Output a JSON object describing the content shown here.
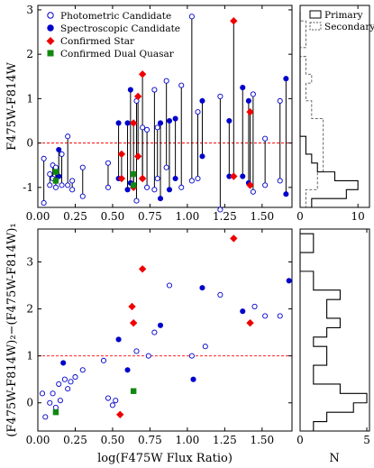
{
  "colors": {
    "photometric": "#0000cc",
    "spectroscopic": "#0000cc",
    "star": "#ee0000",
    "dual": "#118811",
    "reference": "#ff0000"
  },
  "chart_data": [
    {
      "id": "top-scatter",
      "type": "scatter",
      "xlabel": "",
      "ylabel": "F475W-F814W",
      "xlim": [
        0.0,
        1.7
      ],
      "ylim": [
        -1.45,
        3.1
      ],
      "xticks": [
        "0.00",
        "0.25",
        "0.50",
        "0.75",
        "1.00",
        "1.25",
        "1.50"
      ],
      "yticks": [
        "-1",
        "0",
        "1",
        "2",
        "3"
      ],
      "reference_y": 0,
      "legend": {
        "position": "top-left",
        "entries": [
          {
            "label": "Photometric Candidate",
            "marker": "open-circle"
          },
          {
            "label": "Spectroscopic Candidate",
            "marker": "filled-circle"
          },
          {
            "label": "Confirmed Star",
            "marker": "diamond"
          },
          {
            "label": "Confirmed Dual Quasar",
            "marker": "square"
          }
        ]
      },
      "pairs": [
        {
          "x": 0.04,
          "y1": -0.35,
          "y2": -1.35,
          "kind": "photometric"
        },
        {
          "x": 0.08,
          "y1": -0.7,
          "y2": -0.95,
          "kind": "photometric"
        },
        {
          "x": 0.1,
          "y1": -0.5,
          "y2": -0.8,
          "kind": "photometric"
        },
        {
          "x": 0.12,
          "y1": -0.55,
          "y2": -1.0,
          "kind": "photometric"
        },
        {
          "x": 0.14,
          "y1": -0.15,
          "y2": -0.75,
          "kind": "spectroscopic"
        },
        {
          "x": 0.16,
          "y1": -0.25,
          "y2": -0.95,
          "kind": "photometric"
        },
        {
          "x": 0.2,
          "y1": 0.15,
          "y2": -0.95,
          "kind": "photometric"
        },
        {
          "x": 0.23,
          "y1": -0.85,
          "y2": -1.05,
          "kind": "photometric"
        },
        {
          "x": 0.3,
          "y1": -0.55,
          "y2": -1.2,
          "kind": "photometric"
        },
        {
          "x": 0.47,
          "y1": -0.45,
          "y2": -1.0,
          "kind": "photometric"
        },
        {
          "x": 0.54,
          "y1": 0.45,
          "y2": -0.8,
          "kind": "spectroscopic"
        },
        {
          "x": 0.6,
          "y1": 0.45,
          "y2": -1.05,
          "kind": "spectroscopic"
        },
        {
          "x": 0.62,
          "y1": 1.2,
          "y2": -0.9,
          "kind": "spectroscopic"
        },
        {
          "x": 0.66,
          "y1": 0.95,
          "y2": -1.3,
          "kind": "photometric"
        },
        {
          "x": 0.7,
          "y1": 0.35,
          "y2": -0.8,
          "kind": "photometric"
        },
        {
          "x": 0.73,
          "y1": 0.3,
          "y2": -1.0,
          "kind": "photometric"
        },
        {
          "x": 0.78,
          "y1": 1.2,
          "y2": -1.05,
          "kind": "photometric"
        },
        {
          "x": 0.8,
          "y1": 0.35,
          "y2": -0.8,
          "kind": "photometric"
        },
        {
          "x": 0.82,
          "y1": 0.45,
          "y2": -1.25,
          "kind": "spectroscopic"
        },
        {
          "x": 0.86,
          "y1": 1.4,
          "y2": -0.55,
          "kind": "photometric"
        },
        {
          "x": 0.88,
          "y1": 0.5,
          "y2": -1.05,
          "kind": "spectroscopic"
        },
        {
          "x": 0.92,
          "y1": 0.55,
          "y2": -0.8,
          "kind": "spectroscopic"
        },
        {
          "x": 0.96,
          "y1": 1.3,
          "y2": -1.0,
          "kind": "photometric"
        },
        {
          "x": 1.03,
          "y1": 2.85,
          "y2": -0.85,
          "kind": "photometric"
        },
        {
          "x": 1.07,
          "y1": 0.7,
          "y2": -0.8,
          "kind": "photometric"
        },
        {
          "x": 1.1,
          "y1": 0.95,
          "y2": -0.3,
          "kind": "spectroscopic"
        },
        {
          "x": 1.22,
          "y1": 1.05,
          "y2": -1.5,
          "kind": "photometric"
        },
        {
          "x": 1.28,
          "y1": 0.5,
          "y2": -0.75,
          "kind": "spectroscopic"
        },
        {
          "x": 1.37,
          "y1": 1.25,
          "y2": -0.75,
          "kind": "spectroscopic"
        },
        {
          "x": 1.41,
          "y1": 0.95,
          "y2": -0.9,
          "kind": "spectroscopic"
        },
        {
          "x": 1.44,
          "y1": 1.1,
          "y2": -1.1,
          "kind": "photometric"
        },
        {
          "x": 1.52,
          "y1": 0.1,
          "y2": -0.95,
          "kind": "photometric"
        },
        {
          "x": 1.62,
          "y1": 0.95,
          "y2": -0.85,
          "kind": "photometric"
        },
        {
          "x": 1.66,
          "y1": 1.45,
          "y2": -1.15,
          "kind": "spectroscopic"
        },
        {
          "x": 0.56,
          "y1": -0.8,
          "y2": -0.25,
          "kind": "star"
        },
        {
          "x": 0.64,
          "y1": 0.45,
          "y2": -1.0,
          "kind": "star"
        },
        {
          "x": 0.67,
          "y1": 1.05,
          "y2": -0.3,
          "kind": "star"
        },
        {
          "x": 0.7,
          "y1": 1.55,
          "y2": -0.8,
          "kind": "star"
        },
        {
          "x": 1.31,
          "y1": 2.75,
          "y2": -0.75,
          "kind": "star"
        },
        {
          "x": 1.42,
          "y1": 0.7,
          "y2": -0.95,
          "kind": "star"
        },
        {
          "x": 0.12,
          "y1": -0.65,
          "y2": -0.85,
          "kind": "dual"
        },
        {
          "x": 0.64,
          "y1": -0.7,
          "y2": -0.95,
          "kind": "dual"
        }
      ]
    },
    {
      "id": "bottom-scatter",
      "type": "scatter",
      "xlabel": "log(F475W Flux Ratio)",
      "ylabel": "(F475W-F814W)₂−(F475W-F814W)₁",
      "xlim": [
        0.0,
        1.7
      ],
      "ylim": [
        -0.6,
        3.7
      ],
      "xticks": [
        "0.00",
        "0.25",
        "0.50",
        "0.75",
        "1.00",
        "1.25",
        "1.50"
      ],
      "yticks": [
        "0",
        "1",
        "2",
        "3"
      ],
      "reference_y": 1,
      "points": [
        {
          "x": 0.03,
          "y": 0.2,
          "kind": "photometric"
        },
        {
          "x": 0.05,
          "y": -0.3,
          "kind": "photometric"
        },
        {
          "x": 0.08,
          "y": 0.0,
          "kind": "photometric"
        },
        {
          "x": 0.1,
          "y": 0.2,
          "kind": "photometric"
        },
        {
          "x": 0.12,
          "y": -0.1,
          "kind": "photometric"
        },
        {
          "x": 0.14,
          "y": 0.4,
          "kind": "photometric"
        },
        {
          "x": 0.15,
          "y": 0.05,
          "kind": "photometric"
        },
        {
          "x": 0.17,
          "y": 0.85,
          "kind": "spectroscopic"
        },
        {
          "x": 0.18,
          "y": 0.5,
          "kind": "photometric"
        },
        {
          "x": 0.2,
          "y": 0.3,
          "kind": "photometric"
        },
        {
          "x": 0.22,
          "y": 0.45,
          "kind": "photometric"
        },
        {
          "x": 0.25,
          "y": 0.55,
          "kind": "photometric"
        },
        {
          "x": 0.3,
          "y": 0.7,
          "kind": "photometric"
        },
        {
          "x": 0.44,
          "y": 0.9,
          "kind": "photometric"
        },
        {
          "x": 0.47,
          "y": 0.1,
          "kind": "photometric"
        },
        {
          "x": 0.5,
          "y": -0.05,
          "kind": "photometric"
        },
        {
          "x": 0.52,
          "y": 0.05,
          "kind": "photometric"
        },
        {
          "x": 0.54,
          "y": 1.35,
          "kind": "spectroscopic"
        },
        {
          "x": 0.6,
          "y": 0.7,
          "kind": "spectroscopic"
        },
        {
          "x": 0.66,
          "y": 1.1,
          "kind": "photometric"
        },
        {
          "x": 0.74,
          "y": 1.0,
          "kind": "photometric"
        },
        {
          "x": 0.78,
          "y": 1.5,
          "kind": "photometric"
        },
        {
          "x": 0.82,
          "y": 1.65,
          "kind": "spectroscopic"
        },
        {
          "x": 0.88,
          "y": 2.5,
          "kind": "photometric"
        },
        {
          "x": 1.03,
          "y": 1.0,
          "kind": "photometric"
        },
        {
          "x": 1.04,
          "y": 0.5,
          "kind": "spectroscopic"
        },
        {
          "x": 1.12,
          "y": 1.2,
          "kind": "photometric"
        },
        {
          "x": 1.1,
          "y": 2.45,
          "kind": "spectroscopic"
        },
        {
          "x": 1.22,
          "y": 2.3,
          "kind": "photometric"
        },
        {
          "x": 1.37,
          "y": 1.95,
          "kind": "spectroscopic"
        },
        {
          "x": 1.45,
          "y": 2.05,
          "kind": "photometric"
        },
        {
          "x": 1.52,
          "y": 1.85,
          "kind": "photometric"
        },
        {
          "x": 1.62,
          "y": 1.85,
          "kind": "photometric"
        },
        {
          "x": 1.68,
          "y": 2.6,
          "kind": "spectroscopic"
        },
        {
          "x": 0.55,
          "y": -0.25,
          "kind": "star"
        },
        {
          "x": 0.63,
          "y": 2.05,
          "kind": "star"
        },
        {
          "x": 0.64,
          "y": 1.7,
          "kind": "star"
        },
        {
          "x": 0.7,
          "y": 2.85,
          "kind": "star"
        },
        {
          "x": 1.31,
          "y": 3.5,
          "kind": "star"
        },
        {
          "x": 1.42,
          "y": 1.7,
          "kind": "star"
        },
        {
          "x": 0.12,
          "y": -0.2,
          "kind": "dual"
        },
        {
          "x": 0.64,
          "y": 0.25,
          "kind": "dual"
        }
      ]
    },
    {
      "id": "top-histogram",
      "type": "histogram",
      "orientation": "horizontal",
      "xlabel": "",
      "xlim": [
        0,
        12
      ],
      "xticks": [
        "0",
        "10"
      ],
      "ylim": [
        -1.45,
        3.1
      ],
      "legend": {
        "position": "top-right",
        "entries": [
          {
            "label": "Primary",
            "style": "solid"
          },
          {
            "label": "Secondary",
            "style": "dashed"
          }
        ]
      },
      "bin_edges": [
        -1.45,
        -1.25,
        -1.05,
        -0.85,
        -0.65,
        -0.45,
        -0.25,
        -0.05,
        0.15,
        0.35,
        0.55,
        0.75,
        0.95,
        1.15,
        1.35,
        1.55,
        1.75,
        1.95,
        2.15,
        2.35,
        2.55,
        2.75,
        2.95
      ],
      "primary": [
        2,
        8,
        10,
        6,
        3,
        2,
        1,
        1,
        0,
        0,
        0,
        0,
        0,
        0,
        0,
        0,
        0,
        0,
        0,
        0,
        0,
        0
      ],
      "secondary": [
        1,
        1,
        3,
        3,
        4,
        4,
        4,
        4,
        4,
        4,
        2,
        2,
        1,
        1,
        2,
        1,
        1,
        0,
        1,
        1,
        1,
        0
      ]
    },
    {
      "id": "bottom-histogram",
      "type": "histogram",
      "orientation": "horizontal",
      "xlabel": "N",
      "xlim": [
        0,
        5.2
      ],
      "xticks": [
        "0",
        "5"
      ],
      "ylim": [
        -0.6,
        3.7
      ],
      "bin_edges": [
        -0.6,
        -0.4,
        -0.2,
        0.0,
        0.2,
        0.4,
        0.6,
        0.8,
        1.0,
        1.2,
        1.4,
        1.6,
        1.8,
        2.0,
        2.2,
        2.4,
        2.6,
        2.8,
        3.0,
        3.2,
        3.4,
        3.6
      ],
      "counts": [
        1,
        2,
        4,
        5,
        3,
        1,
        1,
        2,
        2,
        1,
        2,
        3,
        2,
        2,
        3,
        1,
        1,
        0,
        0,
        1,
        1
      ]
    }
  ]
}
